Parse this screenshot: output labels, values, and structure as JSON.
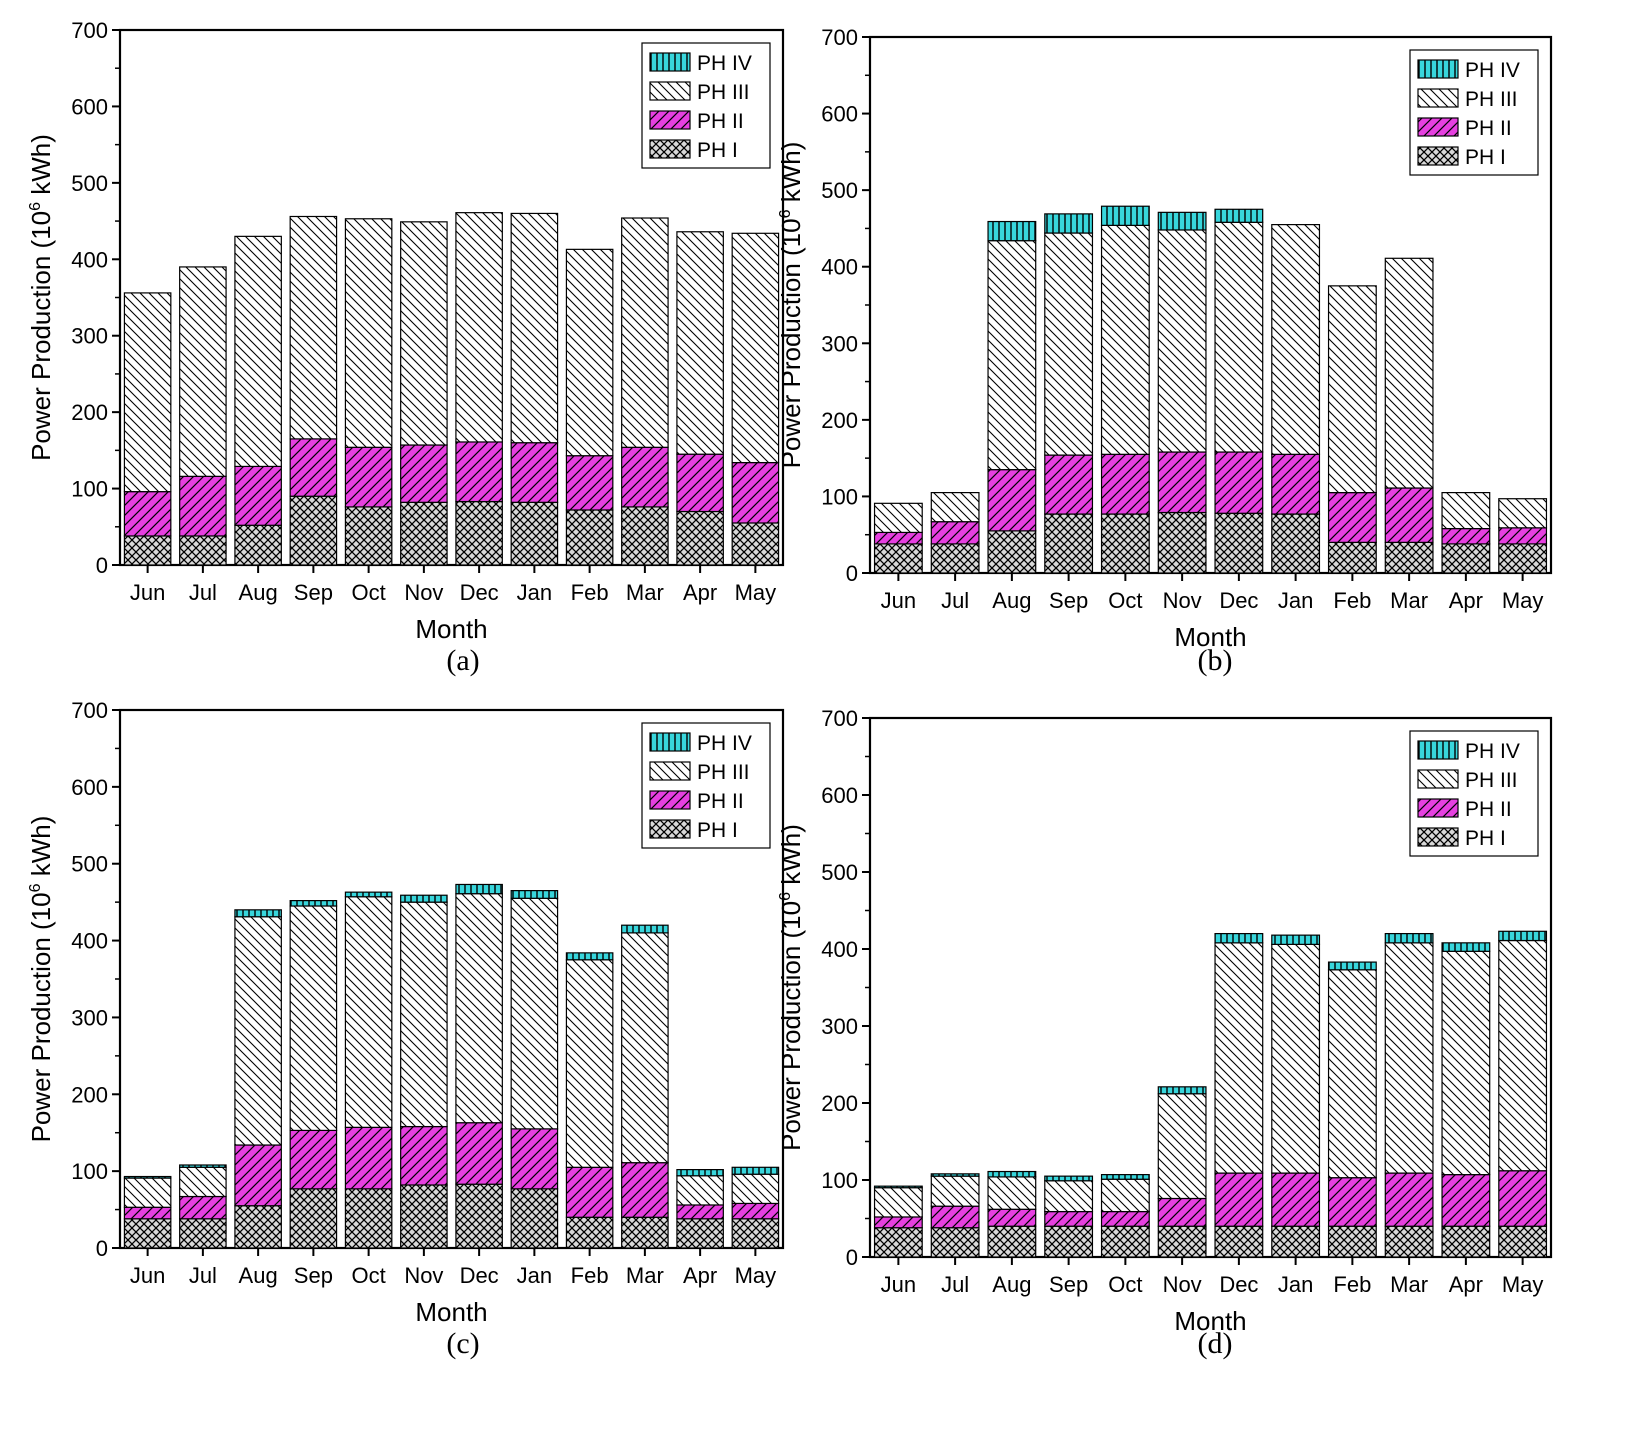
{
  "colors": {
    "ph1_bg": "#d9d9d9",
    "ph1_line": "#000000",
    "ph2_bg": "#e63fe0",
    "ph2_line": "#000000",
    "ph3_bg": "#ffffff",
    "ph3_line": "#000000",
    "ph4_bg": "#38d6dc",
    "ph4_line": "#000000"
  },
  "chart_data": [
    {
      "type": "bar",
      "stacked": true,
      "panel_label": "(a)",
      "xlabel": "Month",
      "ylabel_main": "Power Production (10",
      "ylabel_sup": "6",
      "ylabel_end": " kWh)",
      "ylim": [
        0,
        700
      ],
      "yticks": [
        "0",
        "100",
        "200",
        "300",
        "400",
        "500",
        "600",
        "700"
      ],
      "categories": [
        "Jun",
        "Jul",
        "Aug",
        "Sep",
        "Oct",
        "Nov",
        "Dec",
        "Jan",
        "Feb",
        "Mar",
        "Apr",
        "May"
      ],
      "legend": [
        "PH IV",
        "PH III",
        "PH II",
        "PH I"
      ],
      "legend_position": "top-right",
      "series": [
        {
          "name": "PH I",
          "values": [
            38,
            38,
            52,
            90,
            76,
            82,
            83,
            82,
            72,
            76,
            70,
            55
          ]
        },
        {
          "name": "PH II",
          "values": [
            58,
            78,
            77,
            75,
            78,
            75,
            78,
            78,
            71,
            78,
            75,
            79
          ]
        },
        {
          "name": "PH III",
          "values": [
            260,
            274,
            301,
            291,
            299,
            292,
            300,
            300,
            270,
            300,
            291,
            300
          ]
        },
        {
          "name": "PH IV",
          "values": [
            0,
            0,
            0,
            0,
            0,
            0,
            0,
            0,
            0,
            0,
            0,
            0
          ]
        }
      ]
    },
    {
      "type": "bar",
      "stacked": true,
      "panel_label": "(b)",
      "xlabel": "Month",
      "ylabel_main": "Power Production (10",
      "ylabel_sup": "6",
      "ylabel_end": " kWh)",
      "ylim": [
        0,
        700
      ],
      "yticks": [
        "0",
        "100",
        "200",
        "300",
        "400",
        "500",
        "600",
        "700"
      ],
      "categories": [
        "Jun",
        "Jul",
        "Aug",
        "Sep",
        "Oct",
        "Nov",
        "Dec",
        "Jan",
        "Feb",
        "Mar",
        "Apr",
        "May"
      ],
      "legend": [
        "PH IV",
        "PH III",
        "PH II",
        "PH I"
      ],
      "legend_position": "top-right",
      "series": [
        {
          "name": "PH I",
          "values": [
            38,
            38,
            55,
            77,
            77,
            79,
            78,
            77,
            40,
            40,
            38,
            38
          ]
        },
        {
          "name": "PH II",
          "values": [
            15,
            29,
            80,
            77,
            78,
            79,
            80,
            78,
            65,
            71,
            20,
            21
          ]
        },
        {
          "name": "PH III",
          "values": [
            38,
            38,
            299,
            290,
            299,
            290,
            300,
            300,
            270,
            300,
            47,
            38
          ]
        },
        {
          "name": "PH IV",
          "values": [
            0,
            0,
            25,
            25,
            25,
            23,
            17,
            0,
            0,
            0,
            0,
            0
          ]
        }
      ]
    },
    {
      "type": "bar",
      "stacked": true,
      "panel_label": "(c)",
      "xlabel": "Month",
      "ylabel_main": "Power Production (10",
      "ylabel_sup": "6",
      "ylabel_end": " kWh)",
      "ylim": [
        0,
        700
      ],
      "yticks": [
        "0",
        "100",
        "200",
        "300",
        "400",
        "500",
        "600",
        "700"
      ],
      "categories": [
        "Jun",
        "Jul",
        "Aug",
        "Sep",
        "Oct",
        "Nov",
        "Dec",
        "Jan",
        "Feb",
        "Mar",
        "Apr",
        "May"
      ],
      "legend": [
        "PH IV",
        "PH III",
        "PH II",
        "PH I"
      ],
      "legend_position": "top-right",
      "series": [
        {
          "name": "PH I",
          "values": [
            38,
            38,
            55,
            77,
            77,
            82,
            83,
            77,
            40,
            40,
            38,
            38
          ]
        },
        {
          "name": "PH II",
          "values": [
            15,
            29,
            79,
            76,
            80,
            76,
            80,
            78,
            65,
            71,
            18,
            20
          ]
        },
        {
          "name": "PH III",
          "values": [
            38,
            38,
            297,
            292,
            300,
            292,
            298,
            300,
            270,
            299,
            38,
            38
          ]
        },
        {
          "name": "PH IV",
          "values": [
            2,
            3,
            9,
            7,
            6,
            9,
            12,
            10,
            9,
            10,
            8,
            9
          ]
        }
      ]
    },
    {
      "type": "bar",
      "stacked": true,
      "panel_label": "(d)",
      "xlabel": "Month",
      "ylabel_main": "Power Production (10",
      "ylabel_sup": "6",
      "ylabel_end": " kWh)",
      "ylim": [
        0,
        700
      ],
      "yticks": [
        "0",
        "100",
        "200",
        "300",
        "400",
        "500",
        "600",
        "700"
      ],
      "categories": [
        "Jun",
        "Jul",
        "Aug",
        "Sep",
        "Oct",
        "Nov",
        "Dec",
        "Jan",
        "Feb",
        "Mar",
        "Apr",
        "May"
      ],
      "legend": [
        "PH IV",
        "PH III",
        "PH II",
        "PH I"
      ],
      "legend_position": "top-right",
      "series": [
        {
          "name": "PH I",
          "values": [
            38,
            38,
            40,
            40,
            40,
            40,
            40,
            40,
            40,
            40,
            40,
            40
          ]
        },
        {
          "name": "PH II",
          "values": [
            14,
            28,
            22,
            19,
            19,
            36,
            69,
            69,
            63,
            69,
            67,
            72
          ]
        },
        {
          "name": "PH III",
          "values": [
            38,
            39,
            42,
            40,
            42,
            136,
            299,
            297,
            270,
            299,
            290,
            299
          ]
        },
        {
          "name": "PH IV",
          "values": [
            2,
            3,
            7,
            6,
            6,
            9,
            12,
            12,
            10,
            12,
            11,
            12
          ]
        }
      ]
    }
  ]
}
